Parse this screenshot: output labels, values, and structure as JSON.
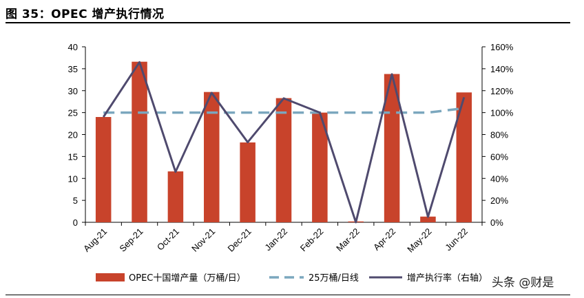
{
  "figure": {
    "title": "图 35：OPEC 增产执行情况"
  },
  "watermark": "头条 @财是",
  "chart_data": {
    "type": "bar+line",
    "categories": [
      "Aug-21",
      "Sep-21",
      "Oct-21",
      "Nov-21",
      "Dec-21",
      "Jan-22",
      "Feb-22",
      "Mar-22",
      "Apr-22",
      "May-22",
      "Jun-22"
    ],
    "y_left": {
      "min": 0,
      "max": 40,
      "ticks": [
        0,
        5,
        10,
        15,
        20,
        25,
        30,
        35,
        40
      ]
    },
    "y_right": {
      "min": 0,
      "max": 160,
      "ticks": [
        "0%",
        "20%",
        "40%",
        "60%",
        "80%",
        "100%",
        "120%",
        "140%",
        "160%"
      ]
    },
    "grid": false,
    "legend_position": "bottom",
    "series": [
      {
        "name": "OPEC十国增产量（万桶/日）",
        "type": "bar",
        "axis": "left",
        "color": "#C8432B",
        "values": [
          24.0,
          36.6,
          11.6,
          29.7,
          18.2,
          28.3,
          25.0,
          0.2,
          33.8,
          1.3,
          29.6
        ]
      },
      {
        "name": "25万桶/日线",
        "type": "line",
        "style": "dashed",
        "axis": "left",
        "color": "#7BA7BE",
        "values": [
          25,
          25,
          25,
          25,
          25,
          25,
          25,
          25,
          25,
          25,
          26
        ]
      },
      {
        "name": "增产执行率（右轴）",
        "type": "line",
        "axis": "right",
        "color": "#4F4A6E",
        "values": [
          96,
          146,
          46,
          118,
          73,
          113,
          100,
          0,
          135,
          5,
          114
        ]
      }
    ]
  }
}
